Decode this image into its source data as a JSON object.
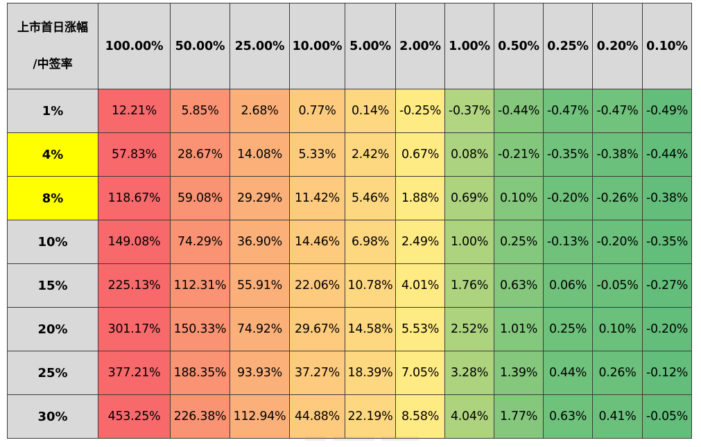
{
  "chart_data": {
    "type": "heatmap",
    "corner_label": [
      "上市首日涨幅",
      "/中签率"
    ],
    "columns": [
      "100.00%",
      "50.00%",
      "25.00%",
      "10.00%",
      "5.00%",
      "2.00%",
      "1.00%",
      "0.50%",
      "0.25%",
      "0.20%",
      "0.10%"
    ],
    "rows": [
      "1%",
      "4%",
      "8%",
      "10%",
      "15%",
      "20%",
      "25%",
      "30%"
    ],
    "highlighted_rows": [
      "4%",
      "8%"
    ],
    "values": [
      [
        "12.21%",
        "5.85%",
        "2.68%",
        "0.77%",
        "0.14%",
        "-0.25%",
        "-0.37%",
        "-0.44%",
        "-0.47%",
        "-0.47%",
        "-0.49%"
      ],
      [
        "57.83%",
        "28.67%",
        "14.08%",
        "5.33%",
        "2.42%",
        "0.67%",
        "0.08%",
        "-0.21%",
        "-0.35%",
        "-0.38%",
        "-0.44%"
      ],
      [
        "118.67%",
        "59.08%",
        "29.29%",
        "11.42%",
        "5.46%",
        "1.88%",
        "0.69%",
        "0.10%",
        "-0.20%",
        "-0.26%",
        "-0.38%"
      ],
      [
        "149.08%",
        "74.29%",
        "36.90%",
        "14.46%",
        "6.98%",
        "2.49%",
        "1.00%",
        "0.25%",
        "-0.13%",
        "-0.20%",
        "-0.35%"
      ],
      [
        "225.13%",
        "112.31%",
        "55.91%",
        "22.06%",
        "10.78%",
        "4.01%",
        "1.76%",
        "0.63%",
        "0.06%",
        "-0.05%",
        "-0.27%"
      ],
      [
        "301.17%",
        "150.33%",
        "74.92%",
        "29.67%",
        "14.58%",
        "5.53%",
        "2.52%",
        "1.01%",
        "0.25%",
        "0.10%",
        "-0.20%"
      ],
      [
        "377.21%",
        "188.35%",
        "93.93%",
        "37.27%",
        "18.39%",
        "7.05%",
        "3.28%",
        "1.39%",
        "0.44%",
        "0.26%",
        "-0.12%"
      ],
      [
        "453.25%",
        "226.38%",
        "112.94%",
        "44.88%",
        "22.19%",
        "8.58%",
        "4.04%",
        "1.77%",
        "0.63%",
        "0.41%",
        "-0.05%"
      ]
    ],
    "color_scale": {
      "low": "#63be7b",
      "mid": "#ffeb84",
      "high": "#f8696b"
    },
    "header_background": "#d9d9d9",
    "highlight_color": "#ffff00"
  }
}
